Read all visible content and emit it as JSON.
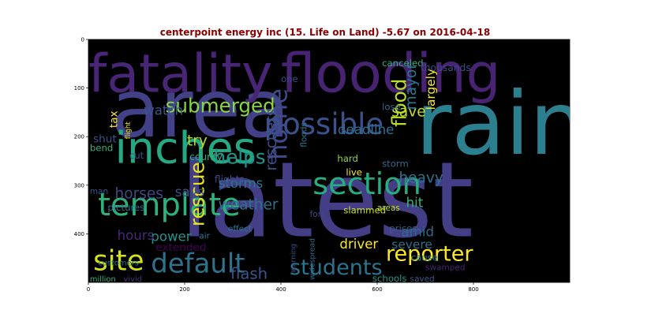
{
  "colors": {
    "title": "#8b0000",
    "background": "#000000",
    "axis": "#000000"
  },
  "chart_data": {
    "type": "wordcloud",
    "title": "centerpoint energy inc (15. Life on Land) -5.67 on 2016-04-18",
    "xlim": [
      0,
      1000
    ],
    "ylim": [
      500,
      0
    ],
    "xticks": [
      0,
      200,
      400,
      600,
      800
    ],
    "yticks": [
      0,
      100,
      200,
      300,
      400
    ],
    "words": [
      {
        "text": "latest",
        "x": 190,
        "y": 405,
        "size": 215,
        "rotate": 0,
        "color": "#433e85"
      },
      {
        "text": "rain",
        "x": 680,
        "y": 235,
        "size": 180,
        "rotate": 0,
        "color": "#2c7f8e"
      },
      {
        "text": "area",
        "x": 47,
        "y": 200,
        "size": 165,
        "rotate": 0,
        "color": "#424086"
      },
      {
        "text": "flooding",
        "x": 400,
        "y": 108,
        "size": 112,
        "rotate": 0,
        "color": "#482273"
      },
      {
        "text": "fatality",
        "x": 0,
        "y": 108,
        "size": 108,
        "rotate": 0,
        "color": "#482575"
      },
      {
        "text": "inches",
        "x": 55,
        "y": 254,
        "size": 90,
        "rotate": 0,
        "color": "#26a883"
      },
      {
        "text": "section",
        "x": 466,
        "y": 318,
        "size": 62,
        "rotate": 0,
        "color": "#26ad81"
      },
      {
        "text": "template",
        "x": 20,
        "y": 362,
        "size": 65,
        "rotate": 0,
        "color": "#2db27d"
      },
      {
        "text": "possible",
        "x": 365,
        "y": 195,
        "size": 60,
        "rotate": 0,
        "color": "#3b518b"
      },
      {
        "text": "site",
        "x": 10,
        "y": 475,
        "size": 58,
        "rotate": 0,
        "color": "#d5e21a"
      },
      {
        "text": "default",
        "x": 130,
        "y": 480,
        "size": 55,
        "rotate": 0,
        "color": "#2c738e"
      },
      {
        "text": "home",
        "x": 412,
        "y": 248,
        "size": 52,
        "rotate": -90,
        "color": "#3d4d8a"
      },
      {
        "text": "reporter",
        "x": 618,
        "y": 455,
        "size": 44,
        "rotate": 0,
        "color": "#fde725"
      },
      {
        "text": "students",
        "x": 418,
        "y": 484,
        "size": 44,
        "rotate": 0,
        "color": "#2b748e"
      },
      {
        "text": "submerged",
        "x": 160,
        "y": 150,
        "size": 40,
        "rotate": 0,
        "color": "#87d549"
      },
      {
        "text": "helps",
        "x": 260,
        "y": 256,
        "size": 40,
        "rotate": 0,
        "color": "#1f958b"
      },
      {
        "text": "rescue",
        "x": 240,
        "y": 385,
        "size": 40,
        "rotate": -90,
        "color": "#e7e419"
      },
      {
        "text": "flood",
        "x": 660,
        "y": 180,
        "size": 40,
        "rotate": -90,
        "color": "#b8de29"
      },
      {
        "text": "try",
        "x": 205,
        "y": 218,
        "size": 30,
        "rotate": 0,
        "color": "#b5de2b"
      },
      {
        "text": "save",
        "x": 630,
        "y": 158,
        "size": 30,
        "rotate": 0,
        "color": "#c0df25"
      },
      {
        "text": "flash",
        "x": 295,
        "y": 493,
        "size": 32,
        "rotate": 0,
        "color": "#39568c"
      },
      {
        "text": "rescuers",
        "x": 390,
        "y": 270,
        "size": 30,
        "rotate": -90,
        "color": "#3c4f8a"
      },
      {
        "text": "weather",
        "x": 270,
        "y": 350,
        "size": 30,
        "rotate": 0,
        "color": "#2c728e"
      },
      {
        "text": "mayor",
        "x": 680,
        "y": 145,
        "size": 30,
        "rotate": -90,
        "color": "#2a768e"
      },
      {
        "text": "horses",
        "x": 55,
        "y": 327,
        "size": 30,
        "rotate": 0,
        "color": "#3f4889"
      },
      {
        "text": "heavy",
        "x": 645,
        "y": 295,
        "size": 30,
        "rotate": 0,
        "color": "#2e6f8e"
      },
      {
        "text": "watch",
        "x": 115,
        "y": 155,
        "size": 27,
        "rotate": 0,
        "color": "#39558c"
      },
      {
        "text": "largely",
        "x": 720,
        "y": 145,
        "size": 25,
        "rotate": -90,
        "color": "#fbe723"
      },
      {
        "text": "storms",
        "x": 270,
        "y": 305,
        "size": 27,
        "rotate": 0,
        "color": "#2a788e"
      },
      {
        "text": "says",
        "x": 180,
        "y": 323,
        "size": 27,
        "rotate": 0,
        "color": "#3b528b"
      },
      {
        "text": "power",
        "x": 130,
        "y": 415,
        "size": 27,
        "rotate": 0,
        "color": "#20938c"
      },
      {
        "text": "hours",
        "x": 60,
        "y": 412,
        "size": 27,
        "rotate": 0,
        "color": "#482878"
      },
      {
        "text": "deadline",
        "x": 518,
        "y": 195,
        "size": 27,
        "rotate": 0,
        "color": "#2d708e"
      },
      {
        "text": "driver",
        "x": 522,
        "y": 430,
        "size": 27,
        "rotate": 0,
        "color": "#fde725"
      },
      {
        "text": "amid",
        "x": 650,
        "y": 405,
        "size": 27,
        "rotate": 0,
        "color": "#31688e"
      },
      {
        "text": "severe",
        "x": 630,
        "y": 430,
        "size": 25,
        "rotate": 0,
        "color": "#2d708e"
      },
      {
        "text": "hit",
        "x": 660,
        "y": 345,
        "size": 27,
        "rotate": 0,
        "color": "#35b779"
      },
      {
        "text": "extended",
        "x": 140,
        "y": 435,
        "size": 22,
        "rotate": 0,
        "color": "#440154"
      },
      {
        "text": "tax",
        "x": 60,
        "y": 182,
        "size": 22,
        "rotate": -90,
        "color": "#fde725"
      },
      {
        "text": "shut",
        "x": 10,
        "y": 212,
        "size": 22,
        "rotate": 0,
        "color": "#3b528b"
      },
      {
        "text": "county",
        "x": 210,
        "y": 248,
        "size": 20,
        "rotate": 0,
        "color": "#29af7f"
      },
      {
        "text": "flights",
        "x": 262,
        "y": 295,
        "size": 20,
        "rotate": 0,
        "color": "#3e4a89"
      },
      {
        "text": "canceled",
        "x": 610,
        "y": 55,
        "size": 19,
        "rotate": 0,
        "color": "#2eb37c"
      },
      {
        "text": "thousands",
        "x": 690,
        "y": 65,
        "size": 20,
        "rotate": 0,
        "color": "#3e4989"
      },
      {
        "text": "one",
        "x": 400,
        "y": 88,
        "size": 19,
        "rotate": 0,
        "color": "#3e4989"
      },
      {
        "text": "lose",
        "x": 610,
        "y": 145,
        "size": 19,
        "rotate": 0,
        "color": "#31688e"
      },
      {
        "text": "floods",
        "x": 453,
        "y": 222,
        "size": 17,
        "rotate": -90,
        "color": "#2a788e"
      },
      {
        "text": "hard",
        "x": 517,
        "y": 252,
        "size": 19,
        "rotate": 0,
        "color": "#8fd744"
      },
      {
        "text": "live",
        "x": 535,
        "y": 280,
        "size": 19,
        "rotate": 0,
        "color": "#fde725"
      },
      {
        "text": "storm",
        "x": 610,
        "y": 262,
        "size": 19,
        "rotate": 0,
        "color": "#31688e"
      },
      {
        "text": "flight",
        "x": 87,
        "y": 205,
        "size": 14,
        "rotate": -90,
        "color": "#e5e419"
      },
      {
        "text": "bend",
        "x": 3,
        "y": 230,
        "size": 19,
        "rotate": 0,
        "color": "#2eb37c"
      },
      {
        "text": "cut",
        "x": 85,
        "y": 245,
        "size": 19,
        "rotate": 0,
        "color": "#3a548c"
      },
      {
        "text": "man",
        "x": 3,
        "y": 318,
        "size": 17,
        "rotate": 0,
        "color": "#3b528b"
      },
      {
        "text": "pictures",
        "x": 40,
        "y": 352,
        "size": 19,
        "rotate": 0,
        "color": "#2c728e"
      },
      {
        "text": "fort",
        "x": 460,
        "y": 365,
        "size": 17,
        "rotate": 0,
        "color": "#3e4989"
      },
      {
        "text": "slammed",
        "x": 530,
        "y": 358,
        "size": 19,
        "rotate": 0,
        "color": "#c8e020"
      },
      {
        "text": "areas",
        "x": 600,
        "y": 352,
        "size": 17,
        "rotate": 0,
        "color": "#c5e021"
      },
      {
        "text": "effect",
        "x": 290,
        "y": 395,
        "size": 17,
        "rotate": 0,
        "color": "#2a788e"
      },
      {
        "text": "air",
        "x": 230,
        "y": 410,
        "size": 17,
        "rotate": 0,
        "color": "#2a788e"
      },
      {
        "text": "prices",
        "x": 625,
        "y": 395,
        "size": 19,
        "rotate": 0,
        "color": "#34608d"
      },
      {
        "text": "customers",
        "x": 20,
        "y": 465,
        "size": 16,
        "rotate": 0,
        "color": "#2a788e"
      },
      {
        "text": "warning",
        "x": 430,
        "y": 480,
        "size": 15,
        "rotate": -90,
        "color": "#3a548c"
      },
      {
        "text": "widespread",
        "x": 470,
        "y": 495,
        "size": 15,
        "rotate": -90,
        "color": "#2d708e"
      },
      {
        "text": "cause",
        "x": 670,
        "y": 455,
        "size": 19,
        "rotate": 0,
        "color": "#2a788e"
      },
      {
        "text": "swamped",
        "x": 700,
        "y": 475,
        "size": 17,
        "rotate": 0,
        "color": "#482475"
      },
      {
        "text": "million",
        "x": 3,
        "y": 498,
        "size": 16,
        "rotate": 0,
        "color": "#2db27d"
      },
      {
        "text": "vivid",
        "x": 73,
        "y": 498,
        "size": 16,
        "rotate": 0,
        "color": "#46337e"
      },
      {
        "text": "schools",
        "x": 590,
        "y": 498,
        "size": 19,
        "rotate": 0,
        "color": "#1f988b"
      },
      {
        "text": "saved",
        "x": 668,
        "y": 498,
        "size": 17,
        "rotate": 0,
        "color": "#39568c"
      }
    ]
  }
}
